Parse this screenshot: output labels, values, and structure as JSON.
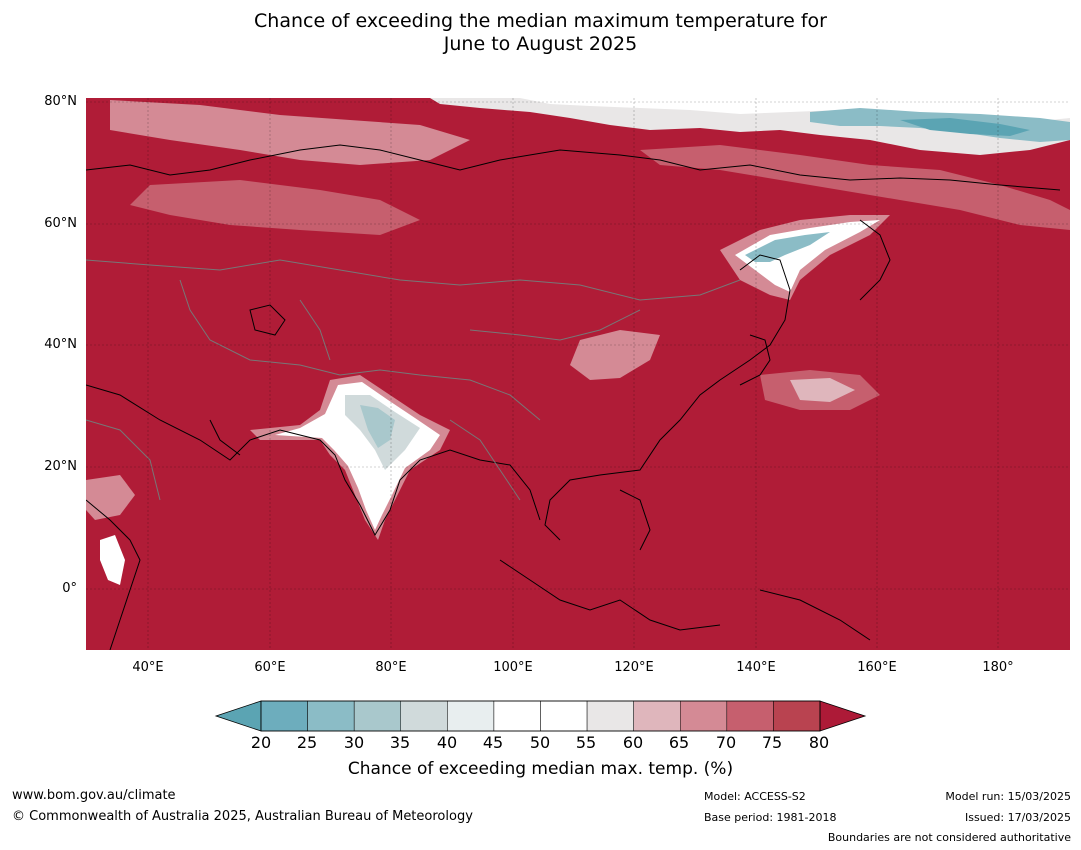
{
  "title": {
    "line1": "Chance of exceeding the median maximum temperature for",
    "line2": "June to August 2025"
  },
  "map": {
    "lat_labels": [
      "80°N",
      "60°N",
      "40°N",
      "20°N",
      "0°"
    ],
    "lon_labels": [
      "40°E",
      "60°E",
      "80°E",
      "100°E",
      "120°E",
      "140°E",
      "160°E",
      "180°"
    ],
    "extent": {
      "lon": [
        30,
        191
      ],
      "lat": [
        -10,
        81
      ]
    },
    "background_color": "#b01c37"
  },
  "colorbar": {
    "ticks": [
      "20",
      "25",
      "30",
      "35",
      "40",
      "45",
      "50",
      "55",
      "60",
      "65",
      "70",
      "75",
      "80"
    ],
    "colors": [
      "#5ba4b3",
      "#6dadbd",
      "#8bbcc6",
      "#a9c8cc",
      "#d0dadb",
      "#e8eeef",
      "#ffffff",
      "#ffffff",
      "#e9e7e7",
      "#dfb6bc",
      "#d48a95",
      "#c65f6e",
      "#b94350",
      "#ad1a37"
    ],
    "label": "Chance of exceeding median max. temp. (%)"
  },
  "footer": {
    "website": "www.bom.gov.au/climate",
    "copyright": "© Commonwealth of Australia 2025, Australian Bureau of Meteorology",
    "model": "Model: ACCESS-S2",
    "base_period": "Base period: 1981-2018",
    "model_run": "Model run: 15/03/2025",
    "issued": "Issued: 17/03/2025",
    "disclaimer": "Boundaries are not considered authoritative"
  }
}
